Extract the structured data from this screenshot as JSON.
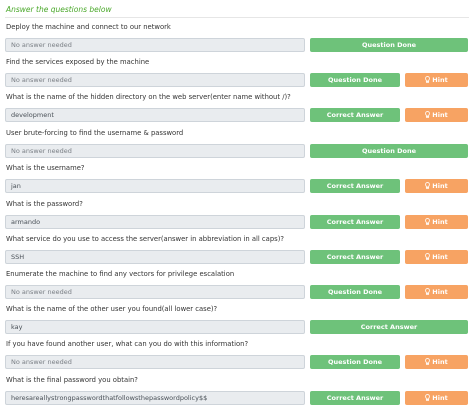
{
  "header": {
    "title": "Answer the questions below"
  },
  "questions": [
    {
      "text": "Deploy the machine and connect to our network",
      "answer": "No answer needed",
      "button": "Question Done"
    },
    {
      "text": "Find the services exposed by the machine",
      "answer": "No answer needed",
      "button": "Question Done",
      "hint": "Hint"
    },
    {
      "text": "What is the name of the hidden directory on the web server(enter name without /)?",
      "answer": "development",
      "button": "Correct Answer",
      "hint": "Hint"
    },
    {
      "text": "User brute-forcing to find the username & password",
      "answer": "No answer needed",
      "button": "Question Done"
    },
    {
      "text": "What is the username?",
      "answer": "jan",
      "button": "Correct Answer",
      "hint": "Hint"
    },
    {
      "text": "What is the password?",
      "answer": "armando",
      "button": "Correct Answer",
      "hint": "Hint"
    },
    {
      "text": "What service do you use to access the server(answer in abbreviation in all caps)?",
      "answer": "SSH",
      "button": "Correct Answer",
      "hint": "Hint"
    },
    {
      "text": "Enumerate the machine to find any vectors for privilege escalation",
      "answer": "No answer needed",
      "button": "Question Done",
      "hint": "Hint"
    },
    {
      "text": "What is the name of the other user you found(all lower case)?",
      "answer": "kay",
      "button": "Correct Answer"
    },
    {
      "text": "If you have found another user, what can you do with this information?",
      "answer": "No answer needed",
      "button": "Question Done",
      "hint": "Hint"
    },
    {
      "text": "What is the final password you obtain?",
      "answer": "heresareallystrongpasswordthatfollowsthepasswordpolicy$$",
      "button": "Correct Answer",
      "hint": "Hint"
    }
  ]
}
